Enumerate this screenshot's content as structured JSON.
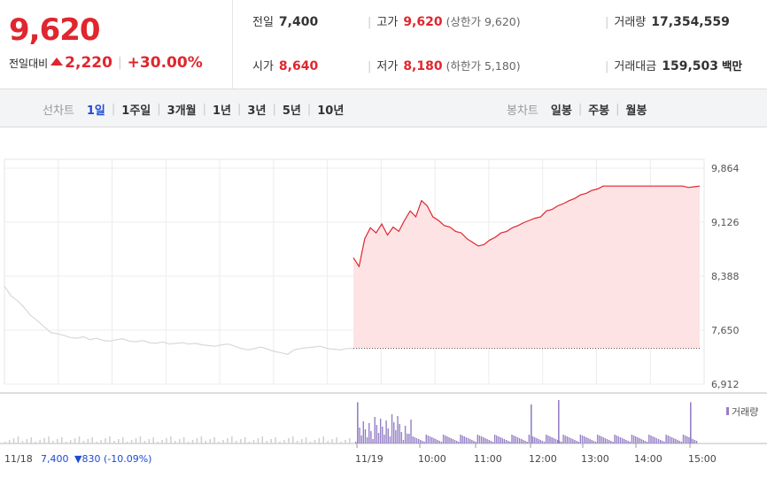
{
  "summary": {
    "price": "9,620",
    "change_label": "전일대비",
    "change_amount": "2,220",
    "change_percent": "+30.00%",
    "stats": [
      {
        "label": "전일",
        "value": "7,400",
        "color": "#222222",
        "sub": ""
      },
      {
        "label": "고가",
        "value": "9,620",
        "color": "#e0262e",
        "sub": "(상한가 9,620)"
      },
      {
        "label": "거래량",
        "value": "17,354,559",
        "color": "#222222",
        "sub": ""
      },
      {
        "label": "시가",
        "value": "8,640",
        "color": "#e0262e",
        "sub": ""
      },
      {
        "label": "저가",
        "value": "8,180",
        "color": "#e0262e",
        "sub": "(하한가 5,180)"
      },
      {
        "label": "거래대금",
        "value": "159,503",
        "color": "#222222",
        "sub": "백만"
      }
    ]
  },
  "tabs": {
    "line_label": "선차트",
    "line_items": [
      "1일",
      "1주일",
      "3개월",
      "1년",
      "3년",
      "5년",
      "10년"
    ],
    "active_line": "1일",
    "candle_label": "봉차트",
    "candle_items": [
      "일봉",
      "주봉",
      "월봉"
    ]
  },
  "chart_data": {
    "type": "area",
    "y_ticks": [
      "9,864",
      "9,126",
      "8,388",
      "7,650",
      "6,912"
    ],
    "ylim": [
      6912,
      9864
    ],
    "previous_close": 7400,
    "x_ticks": [
      "11/19",
      "10:00",
      "11:00",
      "12:00",
      "13:00",
      "14:00",
      "15:00"
    ],
    "prev_day_label": "11/18",
    "prev_day_close": "7,400",
    "prev_day_change": "▼830 (-10.09%)",
    "volume_label": "거래량",
    "colors": {
      "up": "#e0262e",
      "fill": "#fde3e4",
      "prev": "#d8d8d8",
      "volume": "#9580c6"
    },
    "series": [
      {
        "values": [
          8640,
          8520,
          8900,
          9050,
          8980,
          9100,
          8950,
          9060,
          9000,
          9150,
          9280,
          9200,
          9420,
          9350,
          9200,
          9150,
          9080,
          9060,
          9000,
          8980,
          8900,
          8850,
          8800,
          8820,
          8880,
          8920,
          8980,
          9000,
          9050,
          9080,
          9120,
          9150,
          9180,
          9200,
          9280,
          9300,
          9350,
          9380,
          9420,
          9450,
          9500,
          9520,
          9560,
          9580,
          9620,
          9620,
          9620,
          9620,
          9620,
          9620,
          9620,
          9620,
          9620,
          9620,
          9620,
          9620,
          9620,
          9620,
          9620,
          9600,
          9610,
          9620
        ]
      },
      {
        "values": [
          8250,
          8120,
          8050,
          7960,
          7850,
          7780,
          7700,
          7620,
          7600,
          7580,
          7550,
          7540,
          7560,
          7520,
          7540,
          7510,
          7500,
          7520,
          7530,
          7500,
          7490,
          7510,
          7480,
          7470,
          7490,
          7460,
          7470,
          7480,
          7460,
          7470,
          7450,
          7440,
          7430,
          7450,
          7460,
          7430,
          7400,
          7380,
          7400,
          7420,
          7390,
          7360,
          7340,
          7320,
          7380,
          7400,
          7410,
          7420,
          7430,
          7400,
          7390,
          7380,
          7400,
          7400
        ]
      }
    ],
    "volume_spikes": [
      {
        "label": "11/19",
        "value": 0.95
      },
      {
        "label": "12:00",
        "value": 0.9
      },
      {
        "label": "12:40",
        "value": 1.0
      },
      {
        "label": "15:00",
        "value": 0.95
      }
    ]
  }
}
